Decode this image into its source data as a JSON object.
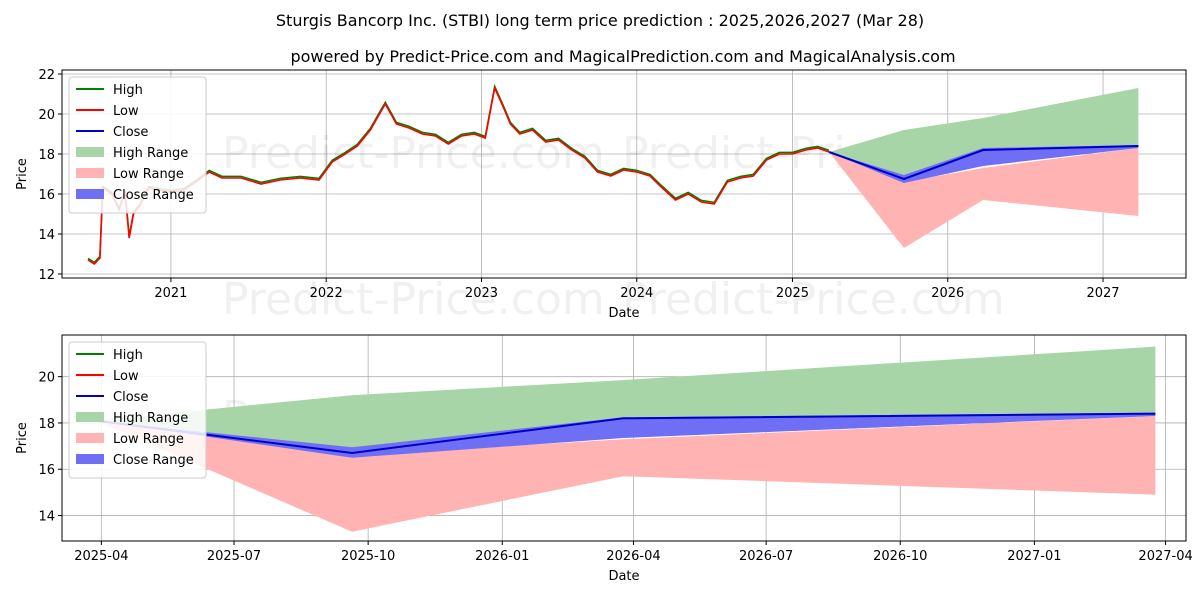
{
  "header": {
    "title": "Sturgis Bancorp Inc. (STBI) long term price prediction : 2025,2026,2027 (Mar 28)",
    "subtitle": "powered by Predict-Price.com and MagicalPrediction.com and MagicalAnalysis.com"
  },
  "watermark": "Predict-Price.com",
  "colors": {
    "high": "#008000",
    "low": "#ff0000",
    "close": "#0000cc",
    "high_range": "#a8d5a8",
    "low_range": "#ffb3b3",
    "close_range": "#6f6ff5"
  },
  "chart_data": [
    {
      "type": "line",
      "xlabel": "Date",
      "ylabel": "Price",
      "xlim": [
        "2020-04-20",
        "2027-07-15"
      ],
      "ylim": [
        11.8,
        22.2
      ],
      "xticks": [
        {
          "date": "2021-01-01",
          "label": "2021"
        },
        {
          "date": "2022-01-01",
          "label": "2022"
        },
        {
          "date": "2023-01-01",
          "label": "2023"
        },
        {
          "date": "2024-01-01",
          "label": "2024"
        },
        {
          "date": "2025-01-01",
          "label": "2025"
        },
        {
          "date": "2026-01-01",
          "label": "2026"
        },
        {
          "date": "2027-01-01",
          "label": "2027"
        }
      ],
      "yticks": [
        12,
        14,
        16,
        18,
        20,
        22
      ],
      "grid": true,
      "legend": "upper-left",
      "legend_entries": [
        "High",
        "Low",
        "Close",
        "High Range",
        "Low Range",
        "Close Range"
      ],
      "history": [
        [
          "2020-06-20",
          12.7
        ],
        [
          "2020-07-05",
          12.5
        ],
        [
          "2020-07-18",
          12.8
        ],
        [
          "2020-07-25",
          16.3
        ],
        [
          "2020-08-15",
          16.0
        ],
        [
          "2020-09-01",
          15.2
        ],
        [
          "2020-09-15",
          16.1
        ],
        [
          "2020-09-25",
          13.8
        ],
        [
          "2020-10-05",
          15.0
        ],
        [
          "2020-10-20",
          15.4
        ],
        [
          "2020-11-10",
          16.3
        ],
        [
          "2020-12-01",
          16.2
        ],
        [
          "2021-01-01",
          16.1
        ],
        [
          "2021-02-01",
          16.2
        ],
        [
          "2021-03-01",
          16.6
        ],
        [
          "2021-04-01",
          17.1
        ],
        [
          "2021-05-01",
          16.8
        ],
        [
          "2021-06-15",
          16.8
        ],
        [
          "2021-08-01",
          16.5
        ],
        [
          "2021-09-15",
          16.7
        ],
        [
          "2021-11-01",
          16.8
        ],
        [
          "2021-12-15",
          16.7
        ],
        [
          "2022-01-15",
          17.6
        ],
        [
          "2022-02-15",
          18.0
        ],
        [
          "2022-03-15",
          18.4
        ],
        [
          "2022-04-15",
          19.2
        ],
        [
          "2022-05-01",
          19.8
        ],
        [
          "2022-05-20",
          20.5
        ],
        [
          "2022-06-15",
          19.5
        ],
        [
          "2022-07-15",
          19.3
        ],
        [
          "2022-08-15",
          19.0
        ],
        [
          "2022-09-15",
          18.9
        ],
        [
          "2022-10-15",
          18.5
        ],
        [
          "2022-11-15",
          18.9
        ],
        [
          "2022-12-15",
          19.0
        ],
        [
          "2023-01-10",
          18.8
        ],
        [
          "2023-02-01",
          21.3
        ],
        [
          "2023-02-20",
          20.4
        ],
        [
          "2023-03-10",
          19.5
        ],
        [
          "2023-04-01",
          19.0
        ],
        [
          "2023-05-01",
          19.2
        ],
        [
          "2023-06-01",
          18.6
        ],
        [
          "2023-07-01",
          18.7
        ],
        [
          "2023-08-01",
          18.2
        ],
        [
          "2023-09-01",
          17.8
        ],
        [
          "2023-10-01",
          17.1
        ],
        [
          "2023-11-01",
          16.9
        ],
        [
          "2023-12-01",
          17.2
        ],
        [
          "2024-01-01",
          17.1
        ],
        [
          "2024-02-01",
          16.9
        ],
        [
          "2024-03-01",
          16.3
        ],
        [
          "2024-04-01",
          15.7
        ],
        [
          "2024-05-01",
          16.0
        ],
        [
          "2024-06-01",
          15.6
        ],
        [
          "2024-07-01",
          15.5
        ],
        [
          "2024-08-01",
          16.6
        ],
        [
          "2024-09-01",
          16.8
        ],
        [
          "2024-10-01",
          16.9
        ],
        [
          "2024-11-01",
          17.7
        ],
        [
          "2024-12-01",
          18.0
        ],
        [
          "2025-01-01",
          18.0
        ],
        [
          "2025-02-01",
          18.2
        ],
        [
          "2025-03-01",
          18.3
        ],
        [
          "2025-03-28",
          18.1
        ]
      ],
      "forecast": {
        "dates": [
          "2025-03-28",
          "2025-09-20",
          "2026-03-25",
          "2027-03-25"
        ],
        "high_range": {
          "upper": [
            18.1,
            19.2,
            19.8,
            21.3
          ],
          "lower": [
            18.1,
            16.9,
            18.2,
            18.4
          ]
        },
        "low_range": {
          "upper": [
            18.1,
            16.6,
            17.3,
            18.3
          ],
          "lower": [
            18.1,
            13.3,
            15.7,
            14.9
          ]
        },
        "close_range": {
          "upper": [
            18.1,
            16.95,
            18.3,
            18.45
          ],
          "lower": [
            18.1,
            16.55,
            17.4,
            18.3
          ]
        },
        "close": [
          18.1,
          16.75,
          18.2,
          18.4
        ]
      }
    },
    {
      "type": "line",
      "xlabel": "Date",
      "ylabel": "Price",
      "xlim": [
        "2025-03-05",
        "2027-04-15"
      ],
      "ylim": [
        12.9,
        21.8
      ],
      "xticks": [
        {
          "date": "2025-04-01",
          "label": "2025-04"
        },
        {
          "date": "2025-07-01",
          "label": "2025-07"
        },
        {
          "date": "2025-10-01",
          "label": "2025-10"
        },
        {
          "date": "2026-01-01",
          "label": "2026-01"
        },
        {
          "date": "2026-04-01",
          "label": "2026-04"
        },
        {
          "date": "2026-07-01",
          "label": "2026-07"
        },
        {
          "date": "2026-10-01",
          "label": "2026-10"
        },
        {
          "date": "2027-01-01",
          "label": "2027-01"
        },
        {
          "date": "2027-04-01",
          "label": "2027-04"
        }
      ],
      "yticks": [
        14,
        16,
        18,
        20
      ],
      "grid": true,
      "legend": "upper-left",
      "legend_entries": [
        "High",
        "Low",
        "Close",
        "High Range",
        "Low Range",
        "Close Range"
      ],
      "forecast": {
        "dates": [
          "2025-03-28",
          "2025-09-20",
          "2026-03-25",
          "2027-03-25"
        ],
        "high_range": {
          "upper": [
            18.1,
            19.2,
            19.85,
            21.3
          ],
          "lower": [
            18.1,
            16.9,
            18.25,
            18.45
          ]
        },
        "low_range": {
          "upper": [
            18.1,
            16.6,
            17.3,
            18.3
          ],
          "lower": [
            18.1,
            13.3,
            15.7,
            14.9
          ]
        },
        "close_range": {
          "upper": [
            18.1,
            16.95,
            18.25,
            18.45
          ],
          "lower": [
            18.1,
            16.5,
            17.35,
            18.3
          ]
        },
        "close": [
          18.1,
          16.7,
          18.2,
          18.4
        ]
      }
    }
  ]
}
